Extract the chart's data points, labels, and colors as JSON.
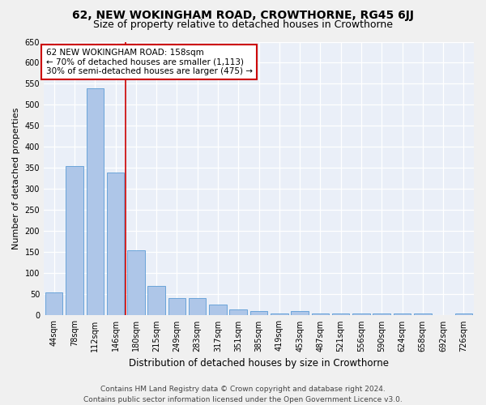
{
  "title": "62, NEW WOKINGHAM ROAD, CROWTHORNE, RG45 6JJ",
  "subtitle": "Size of property relative to detached houses in Crowthorne",
  "xlabel": "Distribution of detached houses by size in Crowthorne",
  "ylabel": "Number of detached properties",
  "categories": [
    "44sqm",
    "78sqm",
    "112sqm",
    "146sqm",
    "180sqm",
    "215sqm",
    "249sqm",
    "283sqm",
    "317sqm",
    "351sqm",
    "385sqm",
    "419sqm",
    "453sqm",
    "487sqm",
    "521sqm",
    "556sqm",
    "590sqm",
    "624sqm",
    "658sqm",
    "692sqm",
    "726sqm"
  ],
  "values": [
    55,
    355,
    540,
    340,
    155,
    70,
    42,
    42,
    25,
    15,
    10,
    5,
    10,
    5,
    5,
    5,
    5,
    5,
    5,
    0,
    5
  ],
  "bar_color": "#aec6e8",
  "bar_edge_color": "#5b9bd5",
  "vline_x": 3.5,
  "highlight_label": "62 NEW WOKINGHAM ROAD: 158sqm",
  "highlight_line1": "← 70% of detached houses are smaller (1,113)",
  "highlight_line2": "30% of semi-detached houses are larger (475) →",
  "annotation_box_color": "#ffffff",
  "annotation_border_color": "#cc0000",
  "vline_color": "#cc0000",
  "ylim": [
    0,
    650
  ],
  "yticks": [
    0,
    50,
    100,
    150,
    200,
    250,
    300,
    350,
    400,
    450,
    500,
    550,
    600,
    650
  ],
  "background_color": "#eaeff8",
  "grid_color": "#ffffff",
  "footer_line1": "Contains HM Land Registry data © Crown copyright and database right 2024.",
  "footer_line2": "Contains public sector information licensed under the Open Government Licence v3.0.",
  "title_fontsize": 10,
  "subtitle_fontsize": 9,
  "xlabel_fontsize": 8.5,
  "ylabel_fontsize": 8,
  "tick_fontsize": 7,
  "footer_fontsize": 6.5,
  "ann_fontsize": 7.5
}
